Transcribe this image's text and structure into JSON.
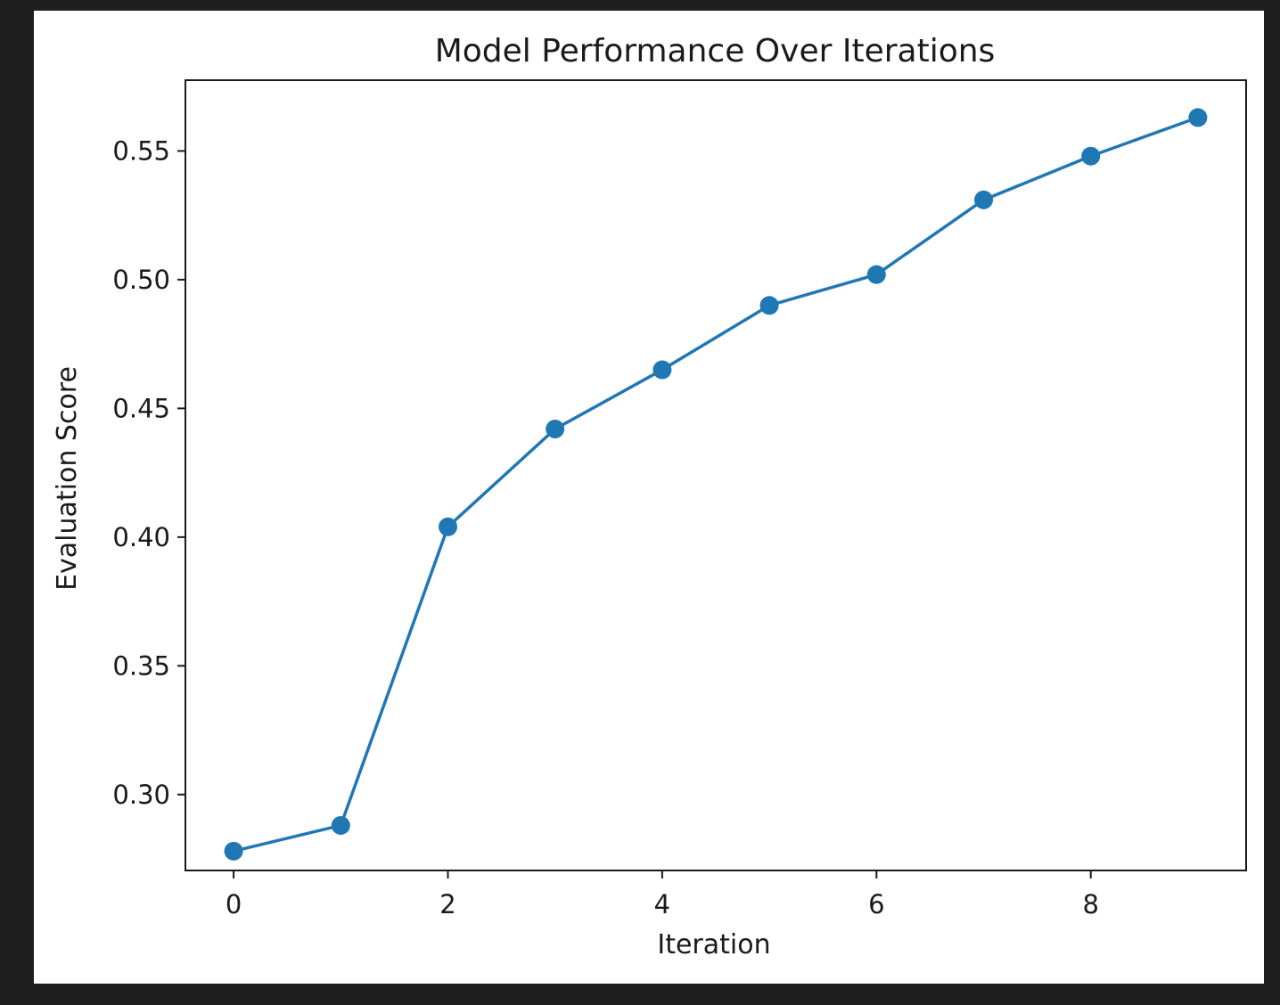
{
  "page": {
    "background_color": "#1f1f1f",
    "panel_color": "#ffffff"
  },
  "chart_data": {
    "type": "line",
    "title": "Model Performance Over Iterations",
    "xlabel": "Iteration",
    "ylabel": "Evaluation Score",
    "x": [
      0,
      1,
      2,
      3,
      4,
      5,
      6,
      7,
      8,
      9
    ],
    "series": [
      {
        "values": [
          0.278,
          0.288,
          0.404,
          0.442,
          0.465,
          0.49,
          0.502,
          0.531,
          0.548,
          0.563
        ],
        "color": "#1f77b4",
        "marker": "circle"
      }
    ],
    "xlim": [
      -0.45,
      9.45
    ],
    "ylim": [
      0.2705,
      0.5775
    ],
    "xticks": [
      0,
      2,
      4,
      6,
      8
    ],
    "xtick_labels": [
      "0",
      "2",
      "4",
      "6",
      "8"
    ],
    "yticks": [
      0.3,
      0.35,
      0.4,
      0.45,
      0.5,
      0.55
    ],
    "ytick_labels": [
      "0.30",
      "0.35",
      "0.40",
      "0.45",
      "0.50",
      "0.55"
    ],
    "grid": false,
    "legend": false
  }
}
